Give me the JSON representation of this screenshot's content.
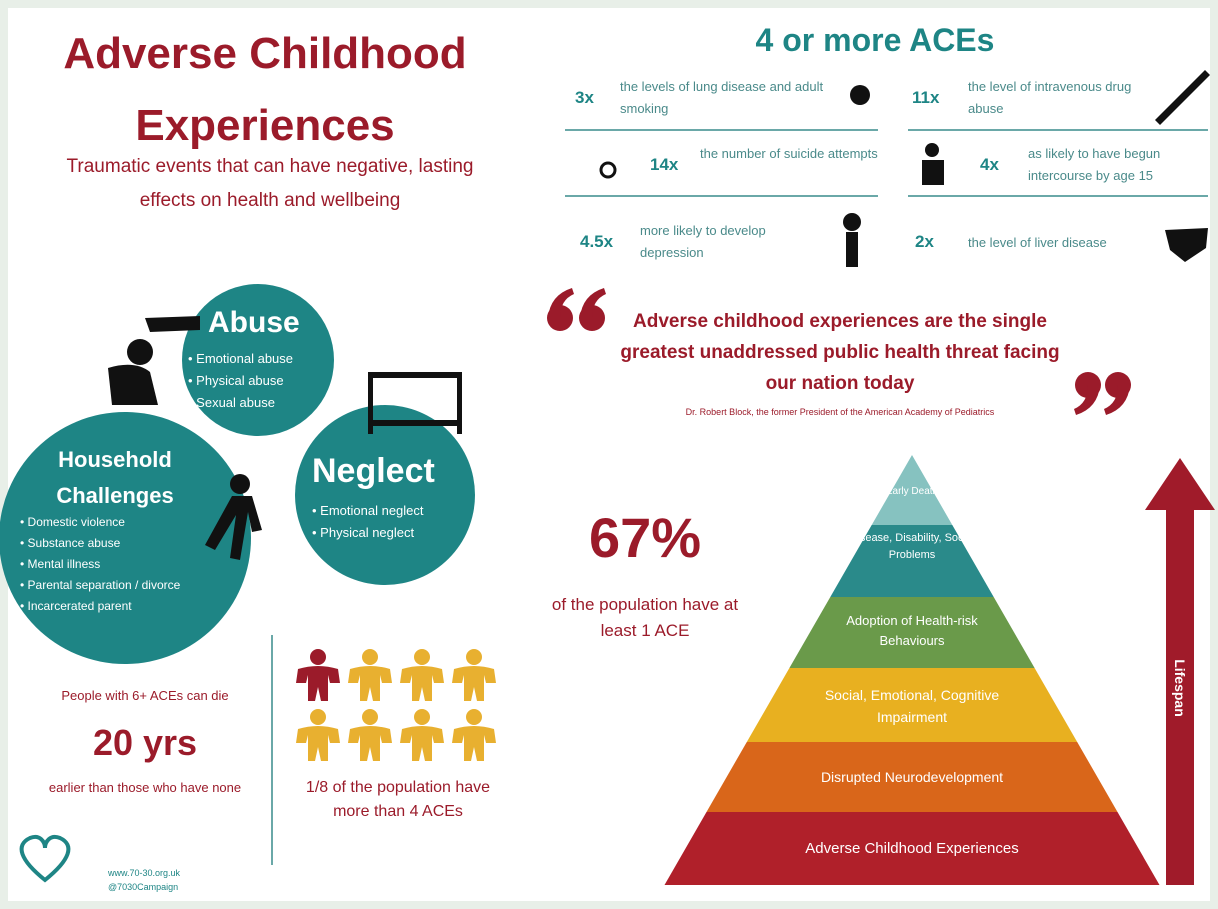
{
  "header": {
    "title": "Adverse Childhood Experiences",
    "subtitle": "Traumatic events that can have negative, lasting effects on health and wellbeing"
  },
  "categories": {
    "abuse": {
      "title": "Abuse",
      "items": [
        "Emotional abuse",
        "Physical abuse",
        "Sexual abuse"
      ]
    },
    "household": {
      "title": "Household Challenges",
      "items": [
        "Domestic violence",
        "Substance abuse",
        "Mental illness",
        "Parental separation / divorce",
        "Incarcerated parent"
      ]
    },
    "neglect": {
      "title": "Neglect",
      "items": [
        "Emotional neglect",
        "Physical neglect"
      ]
    }
  },
  "early_death": {
    "lead": "People with 6+ ACEs can die",
    "figure": "20 yrs",
    "tail": "earlier than those who have none"
  },
  "population": {
    "text": "1/8 of the population have more than 4 ACEs"
  },
  "footer": {
    "website": "www.70-30.org.uk",
    "handle": "@7030Campaign"
  },
  "aces": {
    "title": "4 or more ACEs",
    "items": [
      {
        "multiplier": "3x",
        "text": "the levels of lung disease and adult smoking"
      },
      {
        "multiplier": "11x",
        "text": "the level of intravenous drug abuse"
      },
      {
        "multiplier": "14x",
        "text": "the number of suicide attempts"
      },
      {
        "multiplier": "4x",
        "text": "as likely to have begun intercourse by age 15"
      },
      {
        "multiplier": "4.5x",
        "text": "more likely to develop depression"
      },
      {
        "multiplier": "2x",
        "text": "the level of liver disease"
      }
    ]
  },
  "quote": {
    "text": "Adverse childhood experiences are the single greatest unaddressed public health threat facing our nation today",
    "attribution": "Dr. Robert Block, the former President of the American Academy of Pediatrics"
  },
  "prevalence": {
    "figure": "67%",
    "text": "of the population have at least 1 ACE"
  },
  "pyramid": {
    "levels": [
      "Early Death",
      "Disease, Disability, Social Problems",
      "Adoption of Health-risk Behaviours",
      "Social, Emotional, Cognitive Impairment",
      "Disrupted Neurodevelopment",
      "Adverse Childhood Experiences"
    ],
    "arrow_label": "Lifespan"
  }
}
